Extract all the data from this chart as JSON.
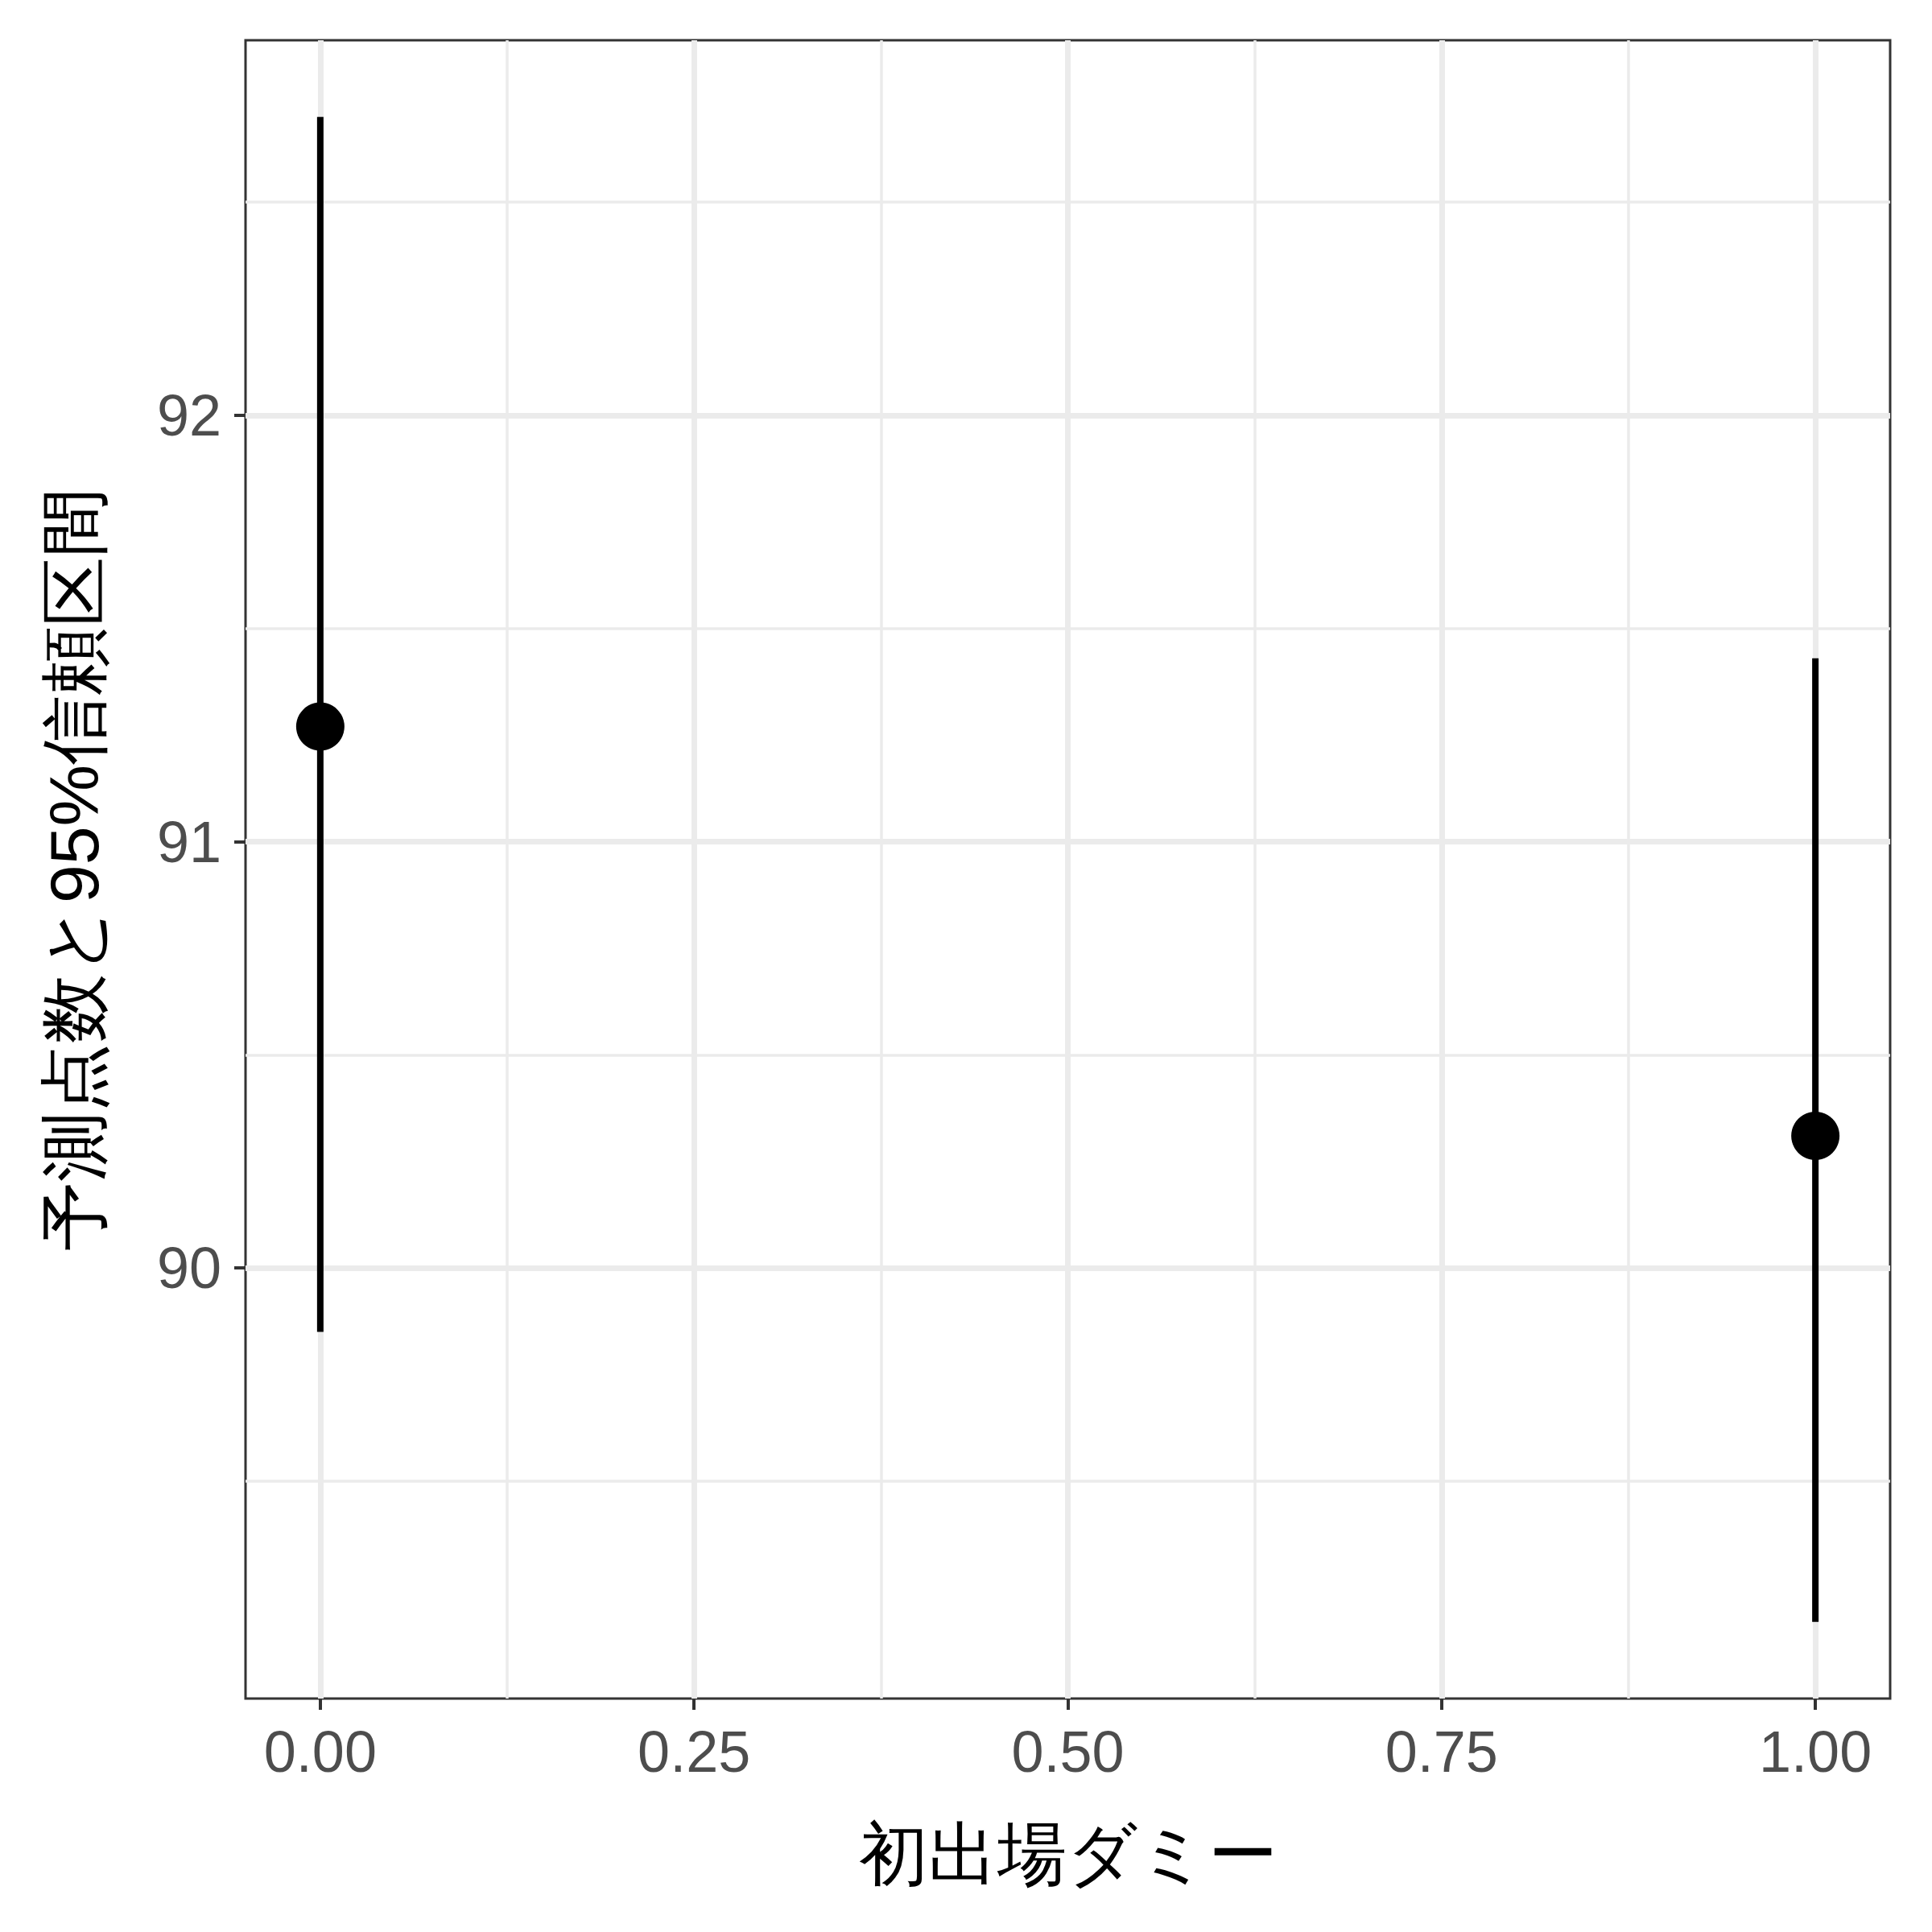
{
  "chart_data": {
    "type": "scatter",
    "x": [
      0,
      1
    ],
    "values": [
      91.27,
      90.31
    ],
    "errors": [
      [
        89.85,
        92.7
      ],
      [
        89.17,
        91.43
      ]
    ],
    "color": "#000000",
    "marker": "circle",
    "xlim": [
      -0.05,
      1.05
    ],
    "xticks": [
      {
        "value": 0,
        "label": "0.00"
      },
      {
        "value": 0.25,
        "label": "0.25"
      },
      {
        "value": 0.5,
        "label": "0.50"
      },
      {
        "value": 0.75,
        "label": "0.75"
      },
      {
        "value": 1,
        "label": "1.00"
      }
    ],
    "ylim": [
      88.99,
      92.88
    ],
    "yticks": [
      90,
      91,
      92
    ],
    "xlabel": "初出場ダミー",
    "ylabel": "予測点数と95%信頼区間",
    "grid": true
  }
}
